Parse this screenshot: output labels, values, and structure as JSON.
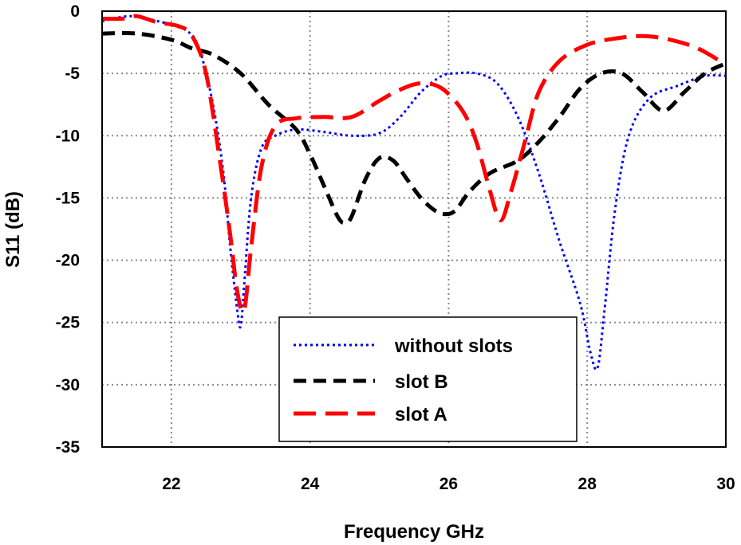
{
  "chart_data": {
    "type": "line",
    "title": "",
    "xlabel": "Frequency GHz",
    "ylabel": "S11 (dB)",
    "xlim": [
      21,
      30
    ],
    "ylim": [
      -35,
      0
    ],
    "xticks": [
      "22",
      "24",
      "26",
      "28",
      "30"
    ],
    "yticks": [
      "0",
      "-5",
      "-10",
      "-15",
      "-20",
      "-25",
      "-30",
      "-35"
    ],
    "grid": true,
    "legend_position": "bottom-center",
    "series": [
      {
        "name": "without slots",
        "color": "#0000ff",
        "style": "dotted",
        "x": [
          21.0,
          21.4,
          21.8,
          22.2,
          22.4,
          22.6,
          22.75,
          22.85,
          22.95,
          23.0,
          23.05,
          23.15,
          23.3,
          23.5,
          23.8,
          24.2,
          24.6,
          25.0,
          25.3,
          25.6,
          25.9,
          26.1,
          26.4,
          26.7,
          27.0,
          27.3,
          27.6,
          27.9,
          28.05,
          28.15,
          28.25,
          28.4,
          28.6,
          28.9,
          29.3,
          29.7,
          30.0
        ],
        "y": [
          -0.8,
          -0.4,
          -0.8,
          -1.5,
          -3.0,
          -7.5,
          -13.0,
          -19.0,
          -24.0,
          -25.3,
          -22.0,
          -15.0,
          -11.0,
          -10.0,
          -9.5,
          -9.7,
          -10.0,
          -9.8,
          -8.5,
          -6.5,
          -5.2,
          -5.0,
          -5.0,
          -5.8,
          -8.5,
          -13.0,
          -18.5,
          -23.5,
          -27.5,
          -28.6,
          -24.0,
          -16.0,
          -10.0,
          -7.0,
          -6.0,
          -5.2,
          -5.2
        ]
      },
      {
        "name": "slot B",
        "color": "#000000",
        "style": "dashed",
        "x": [
          21.0,
          21.5,
          22.0,
          22.3,
          22.6,
          23.0,
          23.4,
          23.8,
          24.0,
          24.2,
          24.4,
          24.5,
          24.6,
          24.8,
          25.0,
          25.2,
          25.4,
          25.6,
          25.8,
          25.95,
          26.1,
          26.3,
          26.6,
          27.0,
          27.3,
          27.6,
          27.9,
          28.2,
          28.5,
          28.8,
          29.1,
          29.4,
          29.7,
          30.0
        ],
        "y": [
          -1.8,
          -1.8,
          -2.3,
          -3.0,
          -3.5,
          -5.0,
          -7.5,
          -9.5,
          -11.5,
          -14.0,
          -16.5,
          -17.0,
          -16.5,
          -13.5,
          -11.8,
          -12.0,
          -13.5,
          -15.0,
          -16.0,
          -16.3,
          -16.0,
          -14.5,
          -13.0,
          -12.0,
          -10.5,
          -8.5,
          -6.2,
          -5.0,
          -5.0,
          -6.5,
          -8.0,
          -6.5,
          -5.0,
          -4.2
        ]
      },
      {
        "name": "slot A",
        "color": "#ff0000",
        "style": "long-dash",
        "x": [
          21.0,
          21.3,
          21.5,
          21.8,
          22.1,
          22.3,
          22.5,
          22.7,
          22.85,
          22.95,
          23.05,
          23.15,
          23.3,
          23.5,
          23.8,
          24.2,
          24.6,
          25.0,
          25.3,
          25.6,
          25.9,
          26.2,
          26.4,
          26.6,
          26.75,
          26.9,
          27.1,
          27.3,
          27.6,
          28.0,
          28.4,
          28.8,
          29.2,
          29.6,
          30.0
        ],
        "y": [
          -0.6,
          -0.6,
          -0.4,
          -0.9,
          -1.2,
          -2.0,
          -5.0,
          -12.0,
          -18.0,
          -22.5,
          -24.0,
          -19.0,
          -12.5,
          -9.2,
          -8.6,
          -8.5,
          -8.5,
          -7.2,
          -6.3,
          -5.8,
          -6.2,
          -8.0,
          -10.5,
          -14.5,
          -16.8,
          -14.5,
          -10.5,
          -6.5,
          -4.0,
          -2.7,
          -2.2,
          -2.0,
          -2.3,
          -3.0,
          -4.3
        ]
      }
    ]
  }
}
